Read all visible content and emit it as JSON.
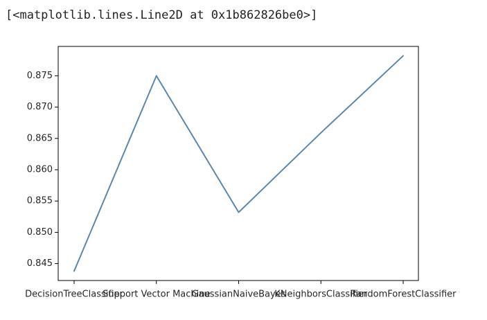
{
  "output": {
    "repr": "[<matplotlib.lines.Line2D at 0x1b862826be0>]"
  },
  "chart_data": {
    "type": "line",
    "categories": [
      "DecisionTreeClassifier",
      "Support Vector Machine",
      "GaussianNaiveBayes",
      "KNeighborsClassifier",
      "RandomForestClassifier"
    ],
    "values": [
      0.8438,
      0.875,
      0.8532,
      0.8659,
      0.8782
    ],
    "yticks": [
      "0.845",
      "0.850",
      "0.855",
      "0.860",
      "0.865",
      "0.870",
      "0.875"
    ],
    "ylim": [
      0.8423,
      0.8797
    ],
    "line_color": "#5b86ad",
    "axis_color": "#000000",
    "grid": false
  }
}
